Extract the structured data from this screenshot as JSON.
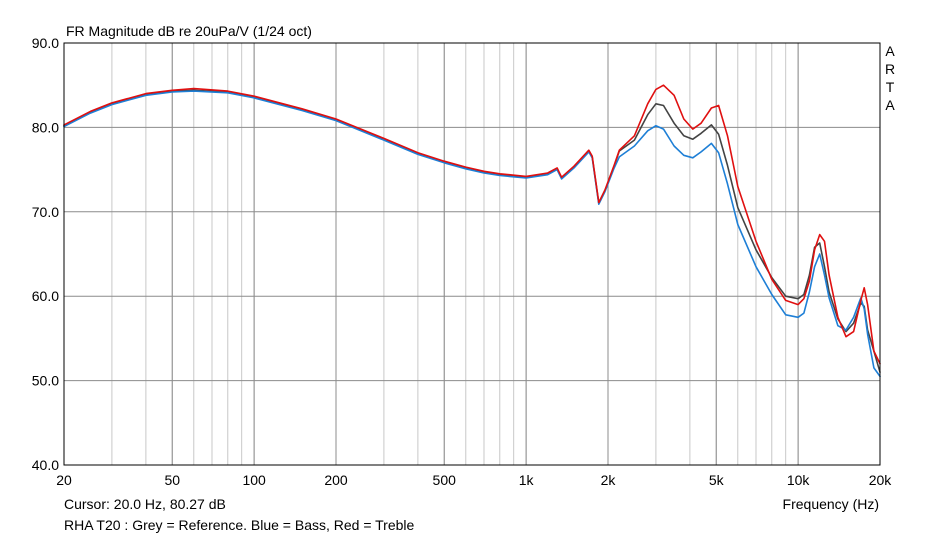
{
  "chart_data": {
    "type": "line",
    "title": "FR Magnitude dB re 20uPa/V (1/24 oct)",
    "watermark": "ARTA",
    "xlabel": "Frequency (Hz)",
    "xscale": "log",
    "xlim": [
      20,
      20000
    ],
    "ylim": [
      40,
      90
    ],
    "x_ticks": [
      {
        "value": 20,
        "label": "20"
      },
      {
        "value": 50,
        "label": "50"
      },
      {
        "value": 100,
        "label": "100"
      },
      {
        "value": 200,
        "label": "200"
      },
      {
        "value": 500,
        "label": "500"
      },
      {
        "value": 1000,
        "label": "1k"
      },
      {
        "value": 2000,
        "label": "2k"
      },
      {
        "value": 5000,
        "label": "5k"
      },
      {
        "value": 10000,
        "label": "10k"
      },
      {
        "value": 20000,
        "label": "20k"
      }
    ],
    "y_ticks": [
      {
        "value": 40,
        "label": "40.0"
      },
      {
        "value": 50,
        "label": "50.0"
      },
      {
        "value": 60,
        "label": "60.0"
      },
      {
        "value": 70,
        "label": "70.0"
      },
      {
        "value": 80,
        "label": "80.0"
      },
      {
        "value": 90,
        "label": "90.0"
      }
    ],
    "grid": true,
    "cursor_text": "Cursor: 20.0 Hz, 80.27 dB",
    "caption": "RHA T20 : Grey = Reference. Blue = Bass, Red = Treble",
    "series": [
      {
        "color": "#444444",
        "points": [
          [
            20,
            80.2
          ],
          [
            25,
            81.8
          ],
          [
            30,
            82.8
          ],
          [
            40,
            83.9
          ],
          [
            50,
            84.3
          ],
          [
            60,
            84.4
          ],
          [
            80,
            84.2
          ],
          [
            100,
            83.6
          ],
          [
            150,
            82.1
          ],
          [
            200,
            80.9
          ],
          [
            300,
            78.6
          ],
          [
            400,
            76.9
          ],
          [
            500,
            75.9
          ],
          [
            600,
            75.2
          ],
          [
            700,
            74.7
          ],
          [
            800,
            74.4
          ],
          [
            1000,
            74.1
          ],
          [
            1200,
            74.5
          ],
          [
            1300,
            75.1
          ],
          [
            1350,
            74.0
          ],
          [
            1500,
            75.3
          ],
          [
            1700,
            77.2
          ],
          [
            1750,
            76.5
          ],
          [
            1850,
            71.0
          ],
          [
            1950,
            72.5
          ],
          [
            2100,
            75.3
          ],
          [
            2200,
            77.2
          ],
          [
            2500,
            78.5
          ],
          [
            2800,
            81.5
          ],
          [
            3000,
            82.8
          ],
          [
            3200,
            82.6
          ],
          [
            3500,
            80.5
          ],
          [
            3800,
            79.0
          ],
          [
            4100,
            78.6
          ],
          [
            4400,
            79.3
          ],
          [
            4800,
            80.3
          ],
          [
            5100,
            79.2
          ],
          [
            5500,
            75.5
          ],
          [
            6000,
            70.5
          ],
          [
            7000,
            65.5
          ],
          [
            8000,
            62.2
          ],
          [
            9000,
            60.0
          ],
          [
            10000,
            59.7
          ],
          [
            10500,
            60.2
          ],
          [
            11000,
            62.5
          ],
          [
            11500,
            65.8
          ],
          [
            12000,
            66.3
          ],
          [
            12500,
            63.5
          ],
          [
            13000,
            60.5
          ],
          [
            14000,
            57.3
          ],
          [
            15000,
            55.8
          ],
          [
            16000,
            56.8
          ],
          [
            17000,
            59.2
          ],
          [
            17500,
            58.8
          ],
          [
            18000,
            56.0
          ],
          [
            19000,
            53.5
          ],
          [
            20000,
            51.0
          ]
        ]
      },
      {
        "color": "#1e7fd6",
        "points": [
          [
            20,
            80.1
          ],
          [
            25,
            81.7
          ],
          [
            30,
            82.7
          ],
          [
            40,
            83.8
          ],
          [
            50,
            84.2
          ],
          [
            60,
            84.3
          ],
          [
            80,
            84.1
          ],
          [
            100,
            83.5
          ],
          [
            150,
            82.0
          ],
          [
            200,
            80.8
          ],
          [
            300,
            78.5
          ],
          [
            400,
            76.8
          ],
          [
            500,
            75.8
          ],
          [
            600,
            75.1
          ],
          [
            700,
            74.6
          ],
          [
            800,
            74.3
          ],
          [
            1000,
            74.0
          ],
          [
            1200,
            74.4
          ],
          [
            1300,
            75.0
          ],
          [
            1350,
            73.9
          ],
          [
            1500,
            75.2
          ],
          [
            1700,
            77.1
          ],
          [
            1750,
            76.4
          ],
          [
            1850,
            70.9
          ],
          [
            1950,
            72.4
          ],
          [
            2100,
            75.1
          ],
          [
            2200,
            76.5
          ],
          [
            2500,
            77.8
          ],
          [
            2800,
            79.6
          ],
          [
            3000,
            80.2
          ],
          [
            3200,
            79.8
          ],
          [
            3500,
            77.8
          ],
          [
            3800,
            76.7
          ],
          [
            4100,
            76.4
          ],
          [
            4400,
            77.1
          ],
          [
            4800,
            78.1
          ],
          [
            5100,
            77.0
          ],
          [
            5500,
            73.3
          ],
          [
            6000,
            68.5
          ],
          [
            7000,
            63.5
          ],
          [
            8000,
            60.2
          ],
          [
            9000,
            57.8
          ],
          [
            10000,
            57.5
          ],
          [
            10500,
            58.0
          ],
          [
            11000,
            60.5
          ],
          [
            11500,
            63.5
          ],
          [
            12000,
            65.0
          ],
          [
            12500,
            62.5
          ],
          [
            13000,
            59.8
          ],
          [
            14000,
            56.5
          ],
          [
            15000,
            56.0
          ],
          [
            16000,
            57.5
          ],
          [
            17000,
            59.8
          ],
          [
            17500,
            58.5
          ],
          [
            18000,
            55.5
          ],
          [
            19000,
            51.5
          ],
          [
            20000,
            50.5
          ]
        ]
      },
      {
        "color": "#e01010",
        "points": [
          [
            20,
            80.3
          ],
          [
            25,
            81.9
          ],
          [
            30,
            82.9
          ],
          [
            40,
            84.0
          ],
          [
            50,
            84.4
          ],
          [
            60,
            84.6
          ],
          [
            80,
            84.3
          ],
          [
            100,
            83.7
          ],
          [
            150,
            82.2
          ],
          [
            200,
            81.0
          ],
          [
            300,
            78.7
          ],
          [
            400,
            77.0
          ],
          [
            500,
            76.0
          ],
          [
            600,
            75.3
          ],
          [
            700,
            74.8
          ],
          [
            800,
            74.5
          ],
          [
            1000,
            74.2
          ],
          [
            1200,
            74.6
          ],
          [
            1300,
            75.2
          ],
          [
            1350,
            74.1
          ],
          [
            1500,
            75.4
          ],
          [
            1700,
            77.3
          ],
          [
            1750,
            76.6
          ],
          [
            1850,
            71.1
          ],
          [
            1950,
            72.6
          ],
          [
            2100,
            75.4
          ],
          [
            2200,
            77.3
          ],
          [
            2500,
            79.0
          ],
          [
            2800,
            82.8
          ],
          [
            3000,
            84.5
          ],
          [
            3200,
            85.0
          ],
          [
            3500,
            83.8
          ],
          [
            3800,
            81.0
          ],
          [
            4100,
            79.8
          ],
          [
            4400,
            80.5
          ],
          [
            4800,
            82.3
          ],
          [
            5100,
            82.6
          ],
          [
            5500,
            79.0
          ],
          [
            6000,
            73.0
          ],
          [
            7000,
            66.5
          ],
          [
            8000,
            62.0
          ],
          [
            9000,
            59.5
          ],
          [
            10000,
            59.0
          ],
          [
            10500,
            59.7
          ],
          [
            11000,
            61.8
          ],
          [
            11500,
            65.5
          ],
          [
            12000,
            67.3
          ],
          [
            12500,
            66.5
          ],
          [
            13000,
            62.5
          ],
          [
            14000,
            57.5
          ],
          [
            15000,
            55.2
          ],
          [
            16000,
            55.8
          ],
          [
            17000,
            59.5
          ],
          [
            17500,
            61.0
          ],
          [
            18000,
            59.0
          ],
          [
            19000,
            53.5
          ],
          [
            20000,
            52.0
          ]
        ]
      }
    ]
  }
}
